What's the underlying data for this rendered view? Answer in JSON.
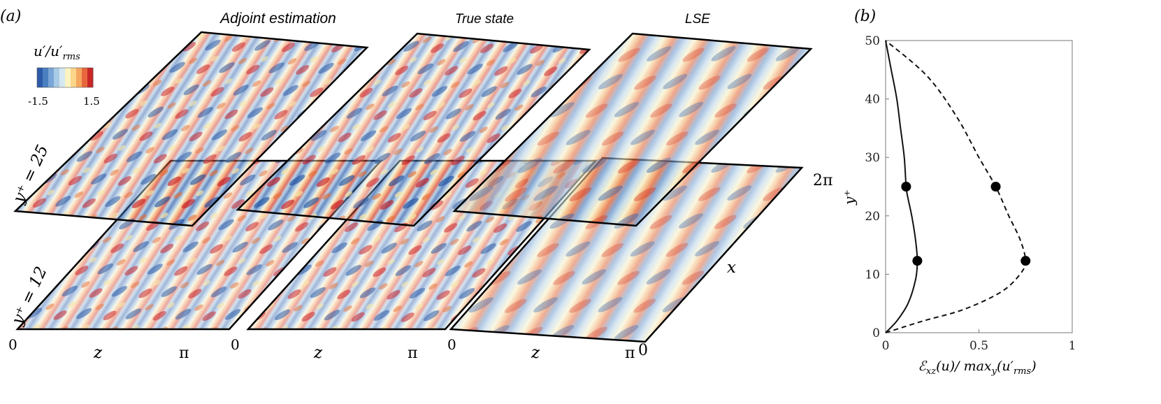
{
  "panel_a": {
    "label": "(a)",
    "columns": [
      {
        "title": "Adjoint estimation",
        "z_axis": {
          "start": "0",
          "label": "z",
          "end": "π"
        }
      },
      {
        "title": "True state",
        "z_axis": {
          "start": "0",
          "label": "z",
          "end": "π"
        }
      },
      {
        "title": "LSE",
        "z_axis": {
          "start": "0",
          "label": "z",
          "end": "π"
        }
      }
    ],
    "plane_labels": {
      "upper": "y⁺ = 25",
      "lower": "y⁺ = 12"
    },
    "colorbar": {
      "title_main": "u′/u′",
      "title_sub": "rms",
      "min_label": "-1.5",
      "max_label": "1.5",
      "colors": [
        "#2c5aa8",
        "#4a7fc0",
        "#79a6d6",
        "#a9cbe5",
        "#d5e7f0",
        "#fbf3c0",
        "#fbd58a",
        "#f5a65f",
        "#e8663c",
        "#c92727"
      ]
    },
    "x_axis": {
      "label": "x",
      "top": "2π",
      "bottom": "0"
    }
  },
  "panel_b": {
    "label": "(b)",
    "ylabel": "y⁺",
    "xlabel": "ℰxz(u)/ maxy(u′rms)"
  },
  "chart_data": {
    "type": "line",
    "xlabel": "ℰxz(u)/ maxy(u′rms)",
    "ylabel": "y⁺",
    "xlim": [
      0,
      1
    ],
    "ylim": [
      0,
      50
    ],
    "xticks": [
      "0",
      "0.5",
      "1"
    ],
    "yticks": [
      "0",
      "10",
      "20",
      "30",
      "40",
      "50"
    ],
    "grid": false,
    "series": [
      {
        "style": "solid",
        "x": [
          0,
          0.06,
          0.12,
          0.16,
          0.17,
          0.16,
          0.14,
          0.12,
          0.11,
          0.1,
          0.08,
          0.06,
          0.03,
          0
        ],
        "y": [
          0,
          2,
          5,
          9,
          12.3,
          16,
          20,
          23,
          25,
          30,
          35,
          40,
          45,
          50
        ]
      },
      {
        "style": "dashed",
        "x": [
          0,
          0.2,
          0.42,
          0.62,
          0.72,
          0.75,
          0.72,
          0.66,
          0.59,
          0.5,
          0.38,
          0.22,
          0
        ],
        "y": [
          0,
          2,
          4,
          7,
          10,
          12.3,
          16,
          20,
          25,
          30,
          37,
          44,
          50
        ]
      }
    ],
    "markers": [
      {
        "x": 0.11,
        "y": 25
      },
      {
        "x": 0.17,
        "y": 12.3
      },
      {
        "x": 0.59,
        "y": 25
      },
      {
        "x": 0.75,
        "y": 12.3
      }
    ]
  }
}
